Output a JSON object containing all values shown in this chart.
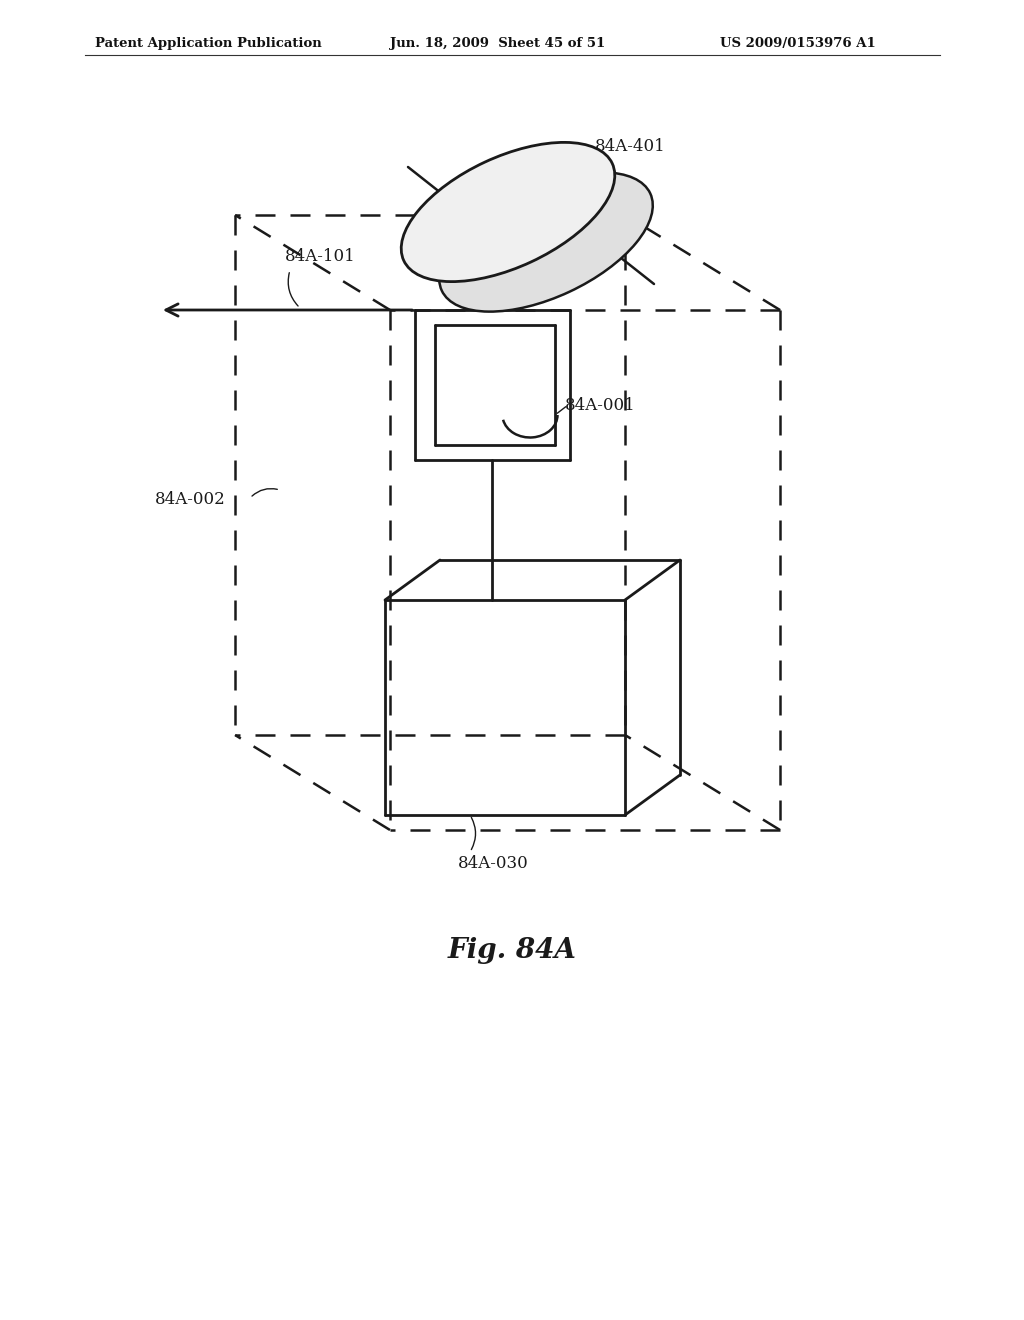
{
  "header_left": "Patent Application Publication",
  "header_mid": "Jun. 18, 2009  Sheet 45 of 51",
  "header_right": "US 2009/0153976 A1",
  "fig_label": "Fig. 84A",
  "bg_color": "#ffffff",
  "line_color": "#1a1a1a"
}
